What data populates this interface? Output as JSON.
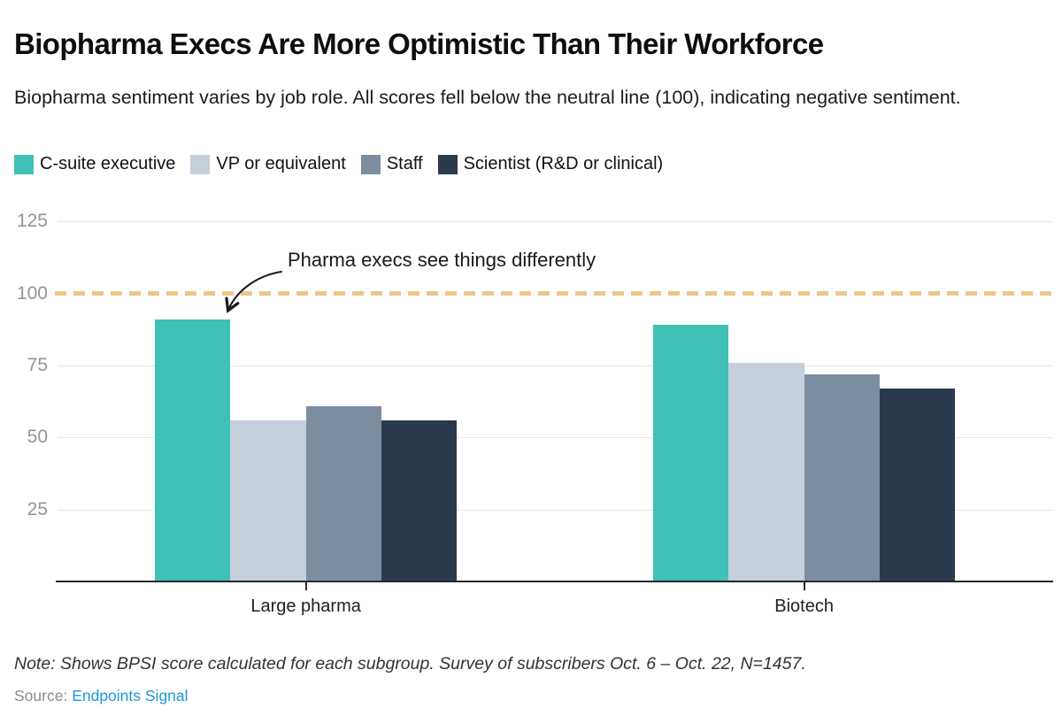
{
  "header": {
    "title": "Biopharma Execs Are More Optimistic Than Their Workforce",
    "subtitle": "Biopharma sentiment varies by job role. All scores fell below the neutral line (100), indicating negative sentiment."
  },
  "legend": [
    {
      "label": "C-suite executive",
      "color": "#3fc1b5"
    },
    {
      "label": "VP or equivalent",
      "color": "#c5cfdc"
    },
    {
      "label": "Staff",
      "color": "#7c8da0"
    },
    {
      "label": "Scientist (R&D or clinical)",
      "color": "#2b3a4b"
    }
  ],
  "chart_data": {
    "type": "bar",
    "title": "Biopharma Execs Are More Optimistic Than Their Workforce",
    "categories": [
      "Large pharma",
      "Biotech"
    ],
    "series": [
      {
        "name": "C-suite executive",
        "color": "#3fc1b5",
        "values": [
          91,
          89
        ]
      },
      {
        "name": "VP or equivalent",
        "color": "#c5cfdc",
        "values": [
          56,
          76
        ]
      },
      {
        "name": "Staff",
        "color": "#7c8da0",
        "values": [
          61,
          72
        ]
      },
      {
        "name": "Scientist (R&D or clinical)",
        "color": "#2b3a4b",
        "values": [
          56,
          67
        ]
      }
    ],
    "yticks": [
      25,
      50,
      75,
      100,
      125
    ],
    "ylim": [
      0,
      135
    ],
    "grid": "horizontal",
    "legend_position": "top",
    "reference_line": {
      "value": 100,
      "style": "dashed",
      "color": "#e7c98b",
      "meaning": "neutral line (100)"
    },
    "annotation": {
      "text": "Pharma execs see things differently",
      "points_to": "Large pharma C-suite executive bar"
    },
    "colors": {
      "gridline": "#e5e5e5",
      "axis": "#26282b",
      "tick_label": "#949494"
    }
  },
  "footer": {
    "note": "Note: Shows BPSI score calculated for each subgroup. Survey of subscribers Oct. 6 – Oct. 22, N=1457.",
    "source_label": "Source:",
    "source_link": "Endpoints Signal",
    "source_link_color": "#1e96d9"
  }
}
